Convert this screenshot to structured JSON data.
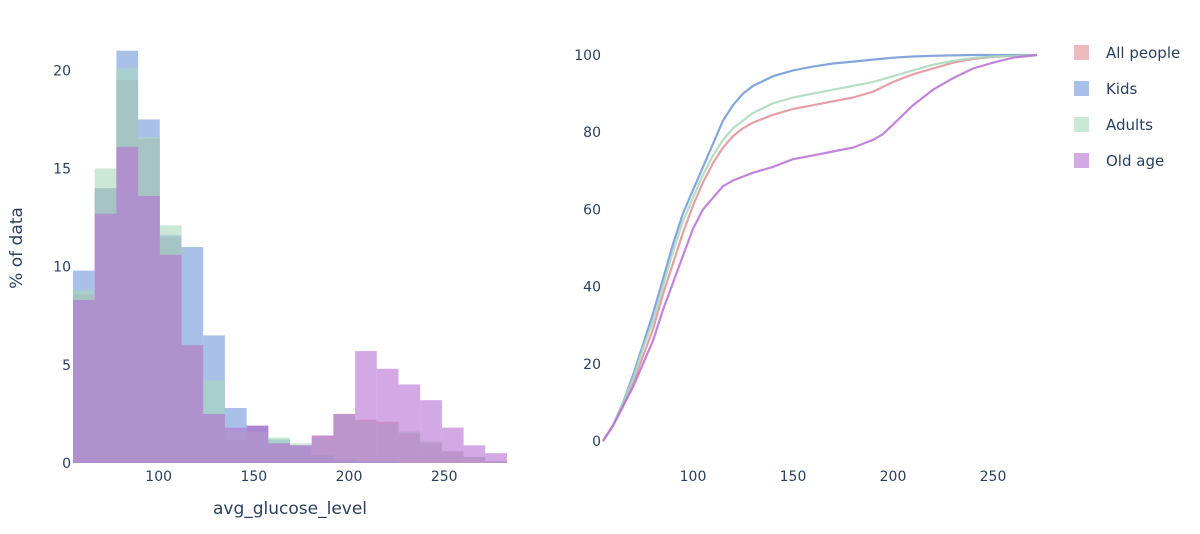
{
  "chart_data": [
    {
      "type": "bar",
      "subtype": "overlaid-histogram",
      "xlabel": "avg_glucose_level",
      "ylabel": "% of data",
      "xlim": [
        55,
        283
      ],
      "ylim": [
        0,
        21.8
      ],
      "xticks": [
        100,
        150,
        200,
        250
      ],
      "yticks": [
        0,
        5,
        10,
        15,
        20
      ],
      "bin_edges": [
        55,
        66.4,
        77.8,
        89.2,
        100.6,
        112,
        123.4,
        134.8,
        146.2,
        157.6,
        169,
        180.4,
        191.8,
        203.2,
        214.6,
        226,
        237.4,
        248.8,
        260.2,
        271.6,
        283
      ],
      "series": [
        {
          "name": "All people",
          "color": "#e08e96",
          "values": [
            8.6,
            14.0,
            19.5,
            16.5,
            11.5,
            6.0,
            2.5,
            1.2,
            1.9,
            1.0,
            0.9,
            1.4,
            2.5,
            2.2,
            2.1,
            1.5,
            1.0,
            0.6,
            0.3,
            0.1
          ]
        },
        {
          "name": "Kids",
          "color": "#6f97d8",
          "values": [
            9.8,
            14.0,
            21.0,
            17.5,
            11.6,
            11.0,
            6.5,
            2.8,
            1.9,
            1.2,
            0.9,
            0.4,
            0.2,
            0.1,
            0.1,
            0.0,
            0.0,
            0.0,
            0.0,
            0.0
          ]
        },
        {
          "name": "Adults",
          "color": "#a8d8bb",
          "values": [
            8.8,
            15.0,
            20.1,
            16.6,
            12.1,
            6.0,
            4.2,
            1.7,
            1.6,
            1.3,
            1.0,
            1.3,
            2.5,
            2.1,
            2.0,
            1.6,
            1.1,
            0.6,
            0.3,
            0.1
          ]
        },
        {
          "name": "Old age",
          "color": "#b66fd3",
          "values": [
            8.3,
            12.7,
            16.1,
            13.6,
            10.6,
            6.0,
            2.5,
            1.8,
            1.9,
            1.0,
            0.9,
            1.4,
            2.5,
            5.7,
            4.8,
            4.0,
            3.2,
            1.8,
            0.9,
            0.5
          ]
        }
      ]
    },
    {
      "type": "line",
      "subtype": "cumulative",
      "xlim": [
        55,
        283
      ],
      "ylim": [
        0,
        106
      ],
      "xticks": [
        100,
        150,
        200,
        250
      ],
      "yticks": [
        0,
        20,
        40,
        60,
        80,
        100
      ],
      "legend_position": "top-right",
      "series": [
        {
          "name": "All people",
          "color": "#e08e96",
          "x": [
            55,
            60,
            65,
            70,
            75,
            80,
            85,
            90,
            95,
            100,
            105,
            110,
            115,
            120,
            125,
            130,
            140,
            150,
            160,
            170,
            180,
            190,
            200,
            210,
            220,
            230,
            240,
            250,
            260,
            272
          ],
          "y": [
            0,
            4,
            9,
            15,
            22,
            29,
            38,
            46,
            54,
            61,
            67,
            72,
            76,
            79,
            81,
            82.5,
            84.5,
            86,
            87,
            88,
            89,
            90.5,
            93,
            95,
            96.5,
            98,
            99,
            99.5,
            99.8,
            100
          ]
        },
        {
          "name": "Kids",
          "color": "#6f97d8",
          "x": [
            55,
            60,
            65,
            70,
            75,
            80,
            85,
            90,
            95,
            100,
            105,
            110,
            115,
            120,
            125,
            130,
            140,
            150,
            160,
            170,
            180,
            190,
            200,
            210,
            220,
            230,
            240,
            250,
            260,
            272
          ],
          "y": [
            0,
            4,
            10,
            17,
            25,
            33,
            42,
            51,
            59,
            65,
            71,
            77,
            83,
            87,
            90,
            92,
            94.5,
            96,
            97,
            97.8,
            98.3,
            98.8,
            99.3,
            99.6,
            99.8,
            99.9,
            100,
            100,
            100,
            100
          ]
        },
        {
          "name": "Adults",
          "color": "#a8d8bb",
          "x": [
            55,
            60,
            65,
            70,
            75,
            80,
            85,
            90,
            95,
            100,
            105,
            110,
            115,
            120,
            125,
            130,
            140,
            150,
            160,
            170,
            180,
            190,
            200,
            210,
            220,
            230,
            240,
            250,
            260,
            272
          ],
          "y": [
            0,
            4,
            10,
            16,
            24,
            31,
            40,
            49,
            57,
            63,
            69,
            74,
            78,
            81,
            83,
            85,
            87.5,
            89,
            90,
            91,
            92,
            93,
            94.5,
            96,
            97.5,
            98.5,
            99.2,
            99.6,
            99.8,
            100
          ]
        },
        {
          "name": "Old age",
          "color": "#b66fd3",
          "x": [
            55,
            60,
            65,
            70,
            75,
            80,
            85,
            90,
            95,
            100,
            105,
            110,
            115,
            120,
            125,
            130,
            140,
            150,
            160,
            170,
            180,
            190,
            195,
            200,
            210,
            220,
            230,
            240,
            250,
            260,
            272
          ],
          "y": [
            0,
            4,
            9,
            14,
            20,
            26,
            34,
            41,
            48,
            55,
            60,
            63,
            66,
            67.5,
            68.5,
            69.5,
            71,
            73,
            74,
            75,
            76,
            78,
            79.5,
            82,
            87,
            91,
            94,
            96.5,
            98,
            99.3,
            100
          ]
        }
      ]
    }
  ]
}
